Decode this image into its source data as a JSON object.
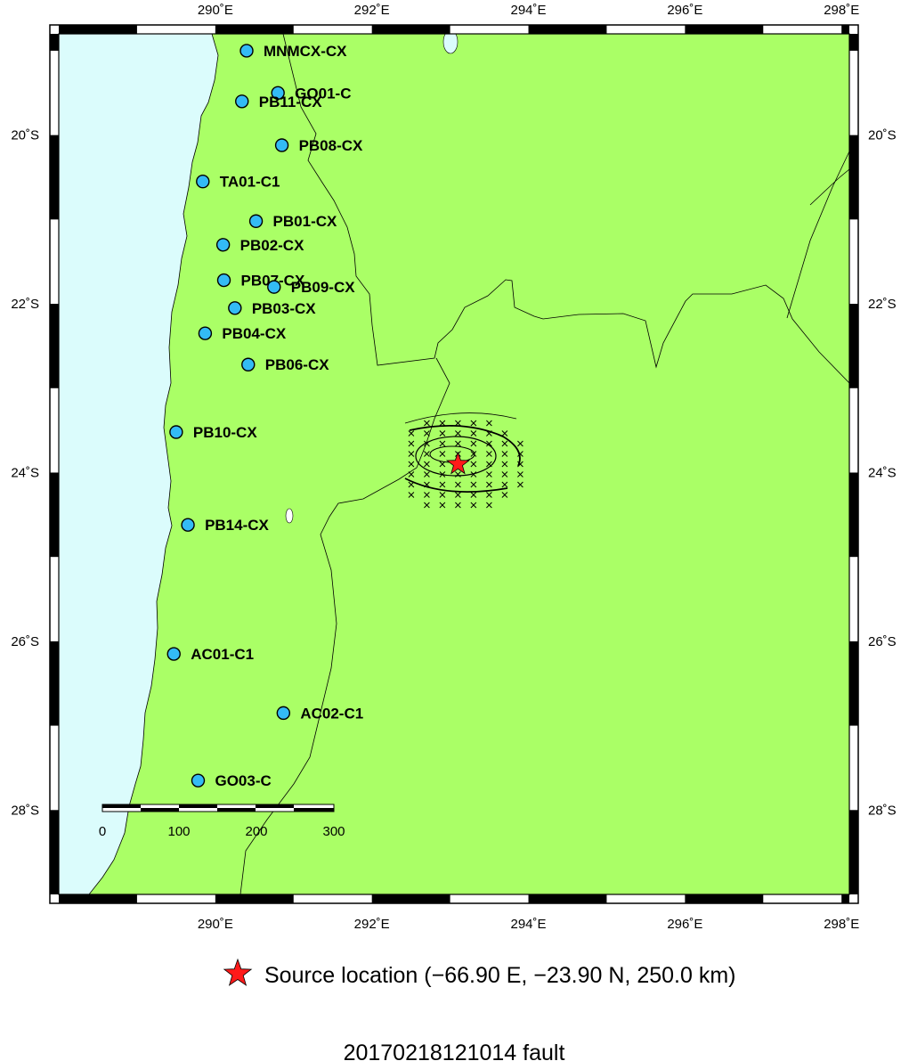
{
  "map": {
    "lon_min": 288.0,
    "lon_max": 298.1,
    "lat_min": -29.0,
    "lat_max": -18.8,
    "colors": {
      "ocean": "#dbfcfc",
      "land": "#aaff66",
      "station": "#33bbf5",
      "source": "#ff1a1a"
    },
    "x_ticks": [
      {
        "value": 290,
        "label": "290˚E"
      },
      {
        "value": 292,
        "label": "292˚E"
      },
      {
        "value": 294,
        "label": "294˚E"
      },
      {
        "value": 296,
        "label": "296˚E"
      },
      {
        "value": 298,
        "label": "298˚E"
      }
    ],
    "y_ticks": [
      {
        "value": -20,
        "label": "20˚S"
      },
      {
        "value": -22,
        "label": "22˚S"
      },
      {
        "value": -24,
        "label": "24˚S"
      },
      {
        "value": -26,
        "label": "26˚S"
      },
      {
        "value": -28,
        "label": "28˚S"
      }
    ]
  },
  "stations": [
    {
      "name": "MNMCX-CX",
      "lon": 290.4,
      "lat": -19.0
    },
    {
      "name": "GO01-C",
      "lon": 290.8,
      "lat": -19.5
    },
    {
      "name": "PB11-CX",
      "lon": 290.34,
      "lat": -19.6
    },
    {
      "name": "PB08-CX",
      "lon": 290.85,
      "lat": -20.12
    },
    {
      "name": "TA01-C1",
      "lon": 289.84,
      "lat": -20.55
    },
    {
      "name": "PB01-CX",
      "lon": 290.52,
      "lat": -21.02
    },
    {
      "name": "PB02-CX",
      "lon": 290.1,
      "lat": -21.3
    },
    {
      "name": "PB07-CX",
      "lon": 290.11,
      "lat": -21.72
    },
    {
      "name": "PB09-CX",
      "lon": 290.75,
      "lat": -21.8
    },
    {
      "name": "PB03-CX",
      "lon": 290.25,
      "lat": -22.05
    },
    {
      "name": "PB04-CX",
      "lon": 289.87,
      "lat": -22.35
    },
    {
      "name": "PB06-CX",
      "lon": 290.42,
      "lat": -22.72
    },
    {
      "name": "PB10-CX",
      "lon": 289.5,
      "lat": -23.52
    },
    {
      "name": "PB14-CX",
      "lon": 289.65,
      "lat": -24.62
    },
    {
      "name": "AC01-C1",
      "lon": 289.47,
      "lat": -26.15
    },
    {
      "name": "AC02-C1",
      "lon": 290.87,
      "lat": -26.85
    },
    {
      "name": "GO03-C",
      "lon": 289.78,
      "lat": -27.65
    }
  ],
  "source": {
    "lon": 293.1,
    "lat": -23.9
  },
  "scale_bar": {
    "ticks": [
      "0",
      "100",
      "200",
      "300"
    ]
  },
  "legend": {
    "text": "Source location (−66.90 E, −23.90 N, 250.0 km)"
  },
  "title": "20170218121014 fault"
}
